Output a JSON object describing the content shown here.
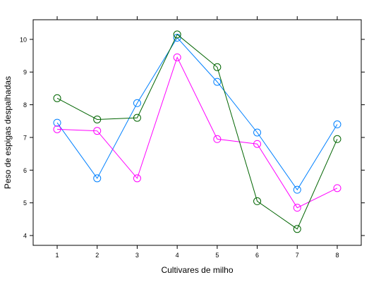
{
  "chart_data": {
    "type": "line",
    "title": "",
    "xlabel": "Cultivares de milho",
    "ylabel": "Peso de espigas despalhadas",
    "x": [
      1,
      2,
      3,
      4,
      5,
      6,
      7,
      8
    ],
    "xlim": [
      0.4,
      8.6
    ],
    "ylim": [
      3.7,
      10.6
    ],
    "xticks": [
      1,
      2,
      3,
      4,
      5,
      6,
      7,
      8
    ],
    "yticks": [
      4,
      5,
      6,
      7,
      8,
      9,
      10
    ],
    "grid": false,
    "legend": "none",
    "marker": "open-circle",
    "series": [
      {
        "color": "#0080ff",
        "values": [
          7.45,
          5.75,
          8.05,
          10.05,
          8.7,
          7.15,
          5.4,
          7.4
        ]
      },
      {
        "color": "#ff00ff",
        "values": [
          7.25,
          7.2,
          5.75,
          9.45,
          6.95,
          6.8,
          4.85,
          5.45
        ]
      },
      {
        "color": "#006400",
        "values": [
          8.2,
          7.55,
          7.6,
          10.15,
          9.15,
          5.05,
          4.2,
          6.95
        ]
      }
    ]
  }
}
